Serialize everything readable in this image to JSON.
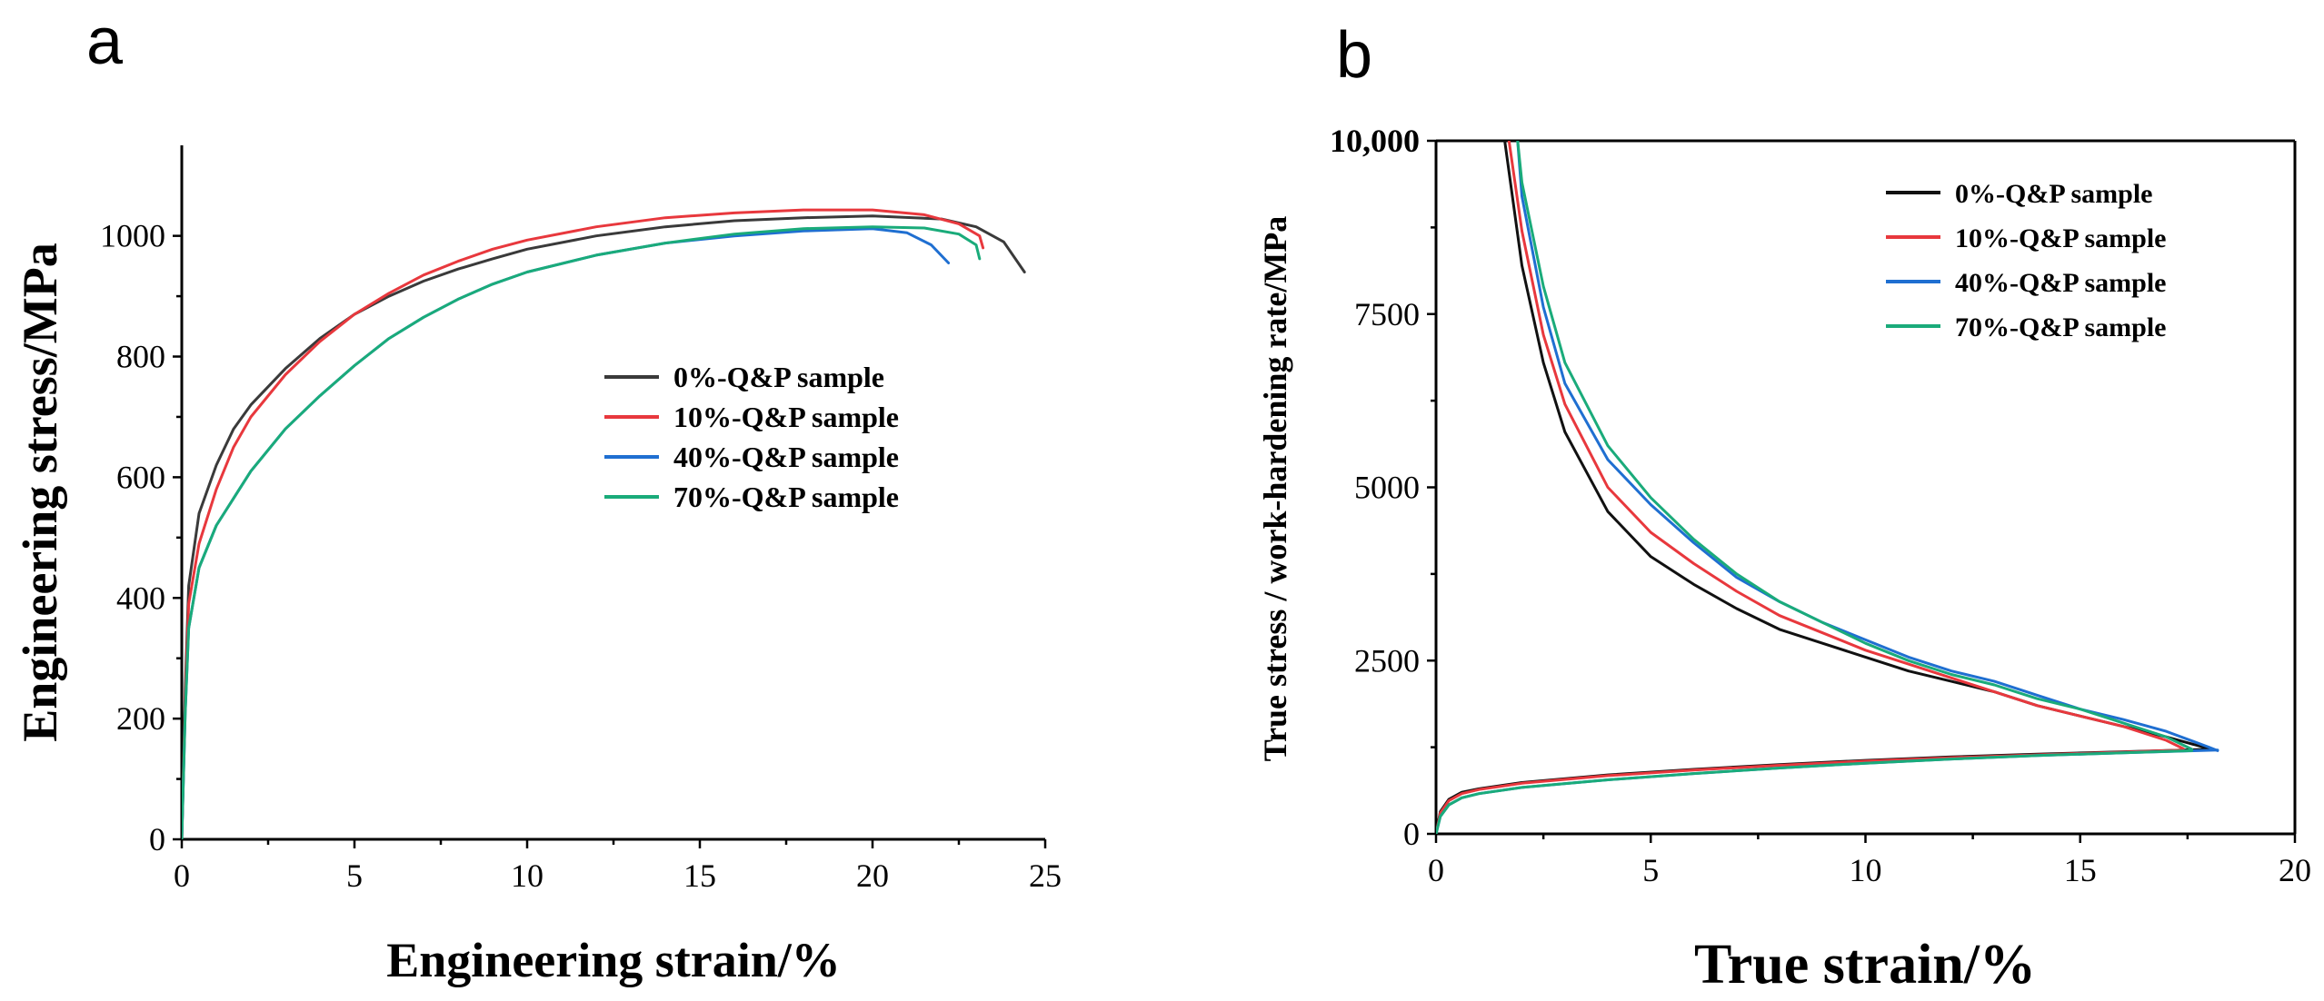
{
  "figure": {
    "panels": [
      "a",
      "b"
    ]
  },
  "chart_data": [
    {
      "id": "a",
      "type": "line",
      "title": "",
      "xlabel": "Engineering strain/%",
      "ylabel": "Engineering stress/MPa",
      "xlim": [
        0,
        25
      ],
      "ylim": [
        0,
        1150
      ],
      "xticks": [
        0,
        5,
        10,
        15,
        20,
        25
      ],
      "yticks": [
        0,
        200,
        400,
        600,
        800,
        1000
      ],
      "xtick_labels": [
        "0",
        "5",
        "10",
        "15",
        "20",
        "25"
      ],
      "ytick_labels": [
        "0",
        "200",
        "400",
        "600",
        "800",
        "1000"
      ],
      "legend_position": "center-right",
      "series": [
        {
          "name": "0%-Q&P sample",
          "color": "#3a3a3a",
          "points": [
            [
              0,
              0
            ],
            [
              0.1,
              250
            ],
            [
              0.2,
              420
            ],
            [
              0.5,
              540
            ],
            [
              1,
              620
            ],
            [
              1.5,
              680
            ],
            [
              2,
              720
            ],
            [
              3,
              780
            ],
            [
              4,
              830
            ],
            [
              5,
              870
            ],
            [
              6,
              900
            ],
            [
              7,
              925
            ],
            [
              8,
              945
            ],
            [
              9,
              962
            ],
            [
              10,
              978
            ],
            [
              12,
              1000
            ],
            [
              14,
              1015
            ],
            [
              16,
              1025
            ],
            [
              18,
              1030
            ],
            [
              20,
              1033
            ],
            [
              22,
              1028
            ],
            [
              23,
              1015
            ],
            [
              23.8,
              990
            ],
            [
              24.4,
              940
            ]
          ]
        },
        {
          "name": "10%-Q&P sample",
          "color": "#e8383d",
          "points": [
            [
              0,
              0
            ],
            [
              0.1,
              230
            ],
            [
              0.2,
              390
            ],
            [
              0.5,
              490
            ],
            [
              1,
              580
            ],
            [
              1.5,
              650
            ],
            [
              2,
              700
            ],
            [
              3,
              770
            ],
            [
              4,
              825
            ],
            [
              5,
              870
            ],
            [
              6,
              905
            ],
            [
              7,
              935
            ],
            [
              8,
              958
            ],
            [
              9,
              978
            ],
            [
              10,
              993
            ],
            [
              12,
              1015
            ],
            [
              14,
              1030
            ],
            [
              16,
              1038
            ],
            [
              18,
              1043
            ],
            [
              20,
              1043
            ],
            [
              21.5,
              1035
            ],
            [
              22.5,
              1020
            ],
            [
              23.1,
              1000
            ],
            [
              23.2,
              980
            ]
          ]
        },
        {
          "name": "40%-Q&P sample",
          "color": "#1f6fd1",
          "points": [
            [
              0,
              0
            ],
            [
              0.1,
              210
            ],
            [
              0.2,
              350
            ],
            [
              0.5,
              450
            ],
            [
              1,
              520
            ],
            [
              2,
              610
            ],
            [
              3,
              680
            ],
            [
              4,
              735
            ],
            [
              5,
              785
            ],
            [
              6,
              830
            ],
            [
              7,
              865
            ],
            [
              8,
              895
            ],
            [
              9,
              920
            ],
            [
              10,
              940
            ],
            [
              12,
              968
            ],
            [
              14,
              988
            ],
            [
              16,
              1000
            ],
            [
              18,
              1008
            ],
            [
              20,
              1012
            ],
            [
              21,
              1005
            ],
            [
              21.7,
              985
            ],
            [
              22.2,
              955
            ]
          ]
        },
        {
          "name": "70%-Q&P sample",
          "color": "#1aab7a",
          "points": [
            [
              0,
              0
            ],
            [
              0.1,
              210
            ],
            [
              0.2,
              350
            ],
            [
              0.5,
              450
            ],
            [
              1,
              520
            ],
            [
              2,
              610
            ],
            [
              3,
              680
            ],
            [
              4,
              735
            ],
            [
              5,
              785
            ],
            [
              6,
              830
            ],
            [
              7,
              865
            ],
            [
              8,
              895
            ],
            [
              9,
              920
            ],
            [
              10,
              940
            ],
            [
              12,
              968
            ],
            [
              14,
              988
            ],
            [
              16,
              1003
            ],
            [
              18,
              1012
            ],
            [
              20,
              1015
            ],
            [
              21.5,
              1013
            ],
            [
              22.5,
              1003
            ],
            [
              23,
              985
            ],
            [
              23.1,
              962
            ]
          ]
        }
      ]
    },
    {
      "id": "b",
      "type": "line",
      "title": "",
      "xlabel": "True strain/%",
      "ylabel": "True stress / work-hardening rate/MPa",
      "xlim": [
        0,
        20
      ],
      "ylim": [
        0,
        10000
      ],
      "xticks": [
        0,
        5,
        10,
        15,
        20
      ],
      "yticks": [
        0,
        2500,
        5000,
        7500,
        10000
      ],
      "xtick_labels": [
        "0",
        "5",
        "10",
        "15",
        "20"
      ],
      "ytick_labels": [
        "0",
        "2500",
        "5000",
        "7500",
        "10,000"
      ],
      "legend_position": "top-right",
      "series": [
        {
          "name": "0%-Q&P sample",
          "color": "#111111",
          "points": [
            [
              1.6,
              10000
            ],
            [
              2,
              8200
            ],
            [
              2.5,
              6800
            ],
            [
              3,
              5800
            ],
            [
              4,
              4650
            ],
            [
              5,
              4000
            ],
            [
              6,
              3600
            ],
            [
              7,
              3250
            ],
            [
              8,
              2950
            ],
            [
              9,
              2750
            ],
            [
              10,
              2550
            ],
            [
              11,
              2350
            ],
            [
              12,
              2200
            ],
            [
              13,
              2050
            ],
            [
              14,
              1850
            ],
            [
              15,
              1700
            ],
            [
              16,
              1550
            ],
            [
              17,
              1400
            ],
            [
              18,
              1230
            ]
          ],
          "stress_points": [
            [
              0,
              0
            ],
            [
              0.1,
              320
            ],
            [
              0.3,
              500
            ],
            [
              0.6,
              600
            ],
            [
              1,
              650
            ],
            [
              2,
              740
            ],
            [
              4,
              850
            ],
            [
              6,
              930
            ],
            [
              8,
              1000
            ],
            [
              10,
              1060
            ],
            [
              12,
              1110
            ],
            [
              14,
              1150
            ],
            [
              16,
              1185
            ],
            [
              18,
              1220
            ]
          ]
        },
        {
          "name": "10%-Q&P sample",
          "color": "#e8383d",
          "points": [
            [
              1.7,
              10000
            ],
            [
              2,
              8700
            ],
            [
              2.5,
              7200
            ],
            [
              3,
              6200
            ],
            [
              4,
              5000
            ],
            [
              5,
              4350
            ],
            [
              6,
              3900
            ],
            [
              7,
              3500
            ],
            [
              8,
              3150
            ],
            [
              9,
              2900
            ],
            [
              10,
              2650
            ],
            [
              11,
              2450
            ],
            [
              12,
              2250
            ],
            [
              13,
              2050
            ],
            [
              14,
              1850
            ],
            [
              15,
              1700
            ],
            [
              16,
              1550
            ],
            [
              17,
              1350
            ],
            [
              17.4,
              1230
            ]
          ],
          "stress_points": [
            [
              0,
              0
            ],
            [
              0.1,
              300
            ],
            [
              0.3,
              480
            ],
            [
              0.6,
              580
            ],
            [
              1,
              640
            ],
            [
              2,
              730
            ],
            [
              4,
              840
            ],
            [
              6,
              920
            ],
            [
              8,
              990
            ],
            [
              10,
              1050
            ],
            [
              12,
              1100
            ],
            [
              14,
              1140
            ],
            [
              16,
              1180
            ],
            [
              17.4,
              1210
            ]
          ]
        },
        {
          "name": "40%-Q&P sample",
          "color": "#1f6fd1",
          "points": [
            [
              1.9,
              10000
            ],
            [
              2,
              9200
            ],
            [
              2.5,
              7600
            ],
            [
              3,
              6500
            ],
            [
              4,
              5400
            ],
            [
              5,
              4750
            ],
            [
              6,
              4200
            ],
            [
              7,
              3700
            ],
            [
              8,
              3350
            ],
            [
              9,
              3050
            ],
            [
              10,
              2800
            ],
            [
              11,
              2550
            ],
            [
              12,
              2350
            ],
            [
              13,
              2200
            ],
            [
              14,
              2000
            ],
            [
              15,
              1800
            ],
            [
              16,
              1650
            ],
            [
              17,
              1480
            ],
            [
              18,
              1250
            ],
            [
              18.2,
              1200
            ]
          ],
          "stress_points": [
            [
              0,
              0
            ],
            [
              0.1,
              250
            ],
            [
              0.3,
              420
            ],
            [
              0.6,
              520
            ],
            [
              1,
              580
            ],
            [
              2,
              670
            ],
            [
              4,
              780
            ],
            [
              6,
              870
            ],
            [
              8,
              950
            ],
            [
              10,
              1020
            ],
            [
              12,
              1080
            ],
            [
              14,
              1130
            ],
            [
              16,
              1170
            ],
            [
              18.2,
              1210
            ]
          ]
        },
        {
          "name": "70%-Q&P sample",
          "color": "#1aab7a",
          "points": [
            [
              1.9,
              10000
            ],
            [
              2,
              9400
            ],
            [
              2.5,
              7900
            ],
            [
              3,
              6800
            ],
            [
              4,
              5600
            ],
            [
              5,
              4850
            ],
            [
              6,
              4250
            ],
            [
              7,
              3750
            ],
            [
              8,
              3350
            ],
            [
              9,
              3050
            ],
            [
              10,
              2750
            ],
            [
              11,
              2500
            ],
            [
              12,
              2300
            ],
            [
              13,
              2150
            ],
            [
              14,
              1950
            ],
            [
              15,
              1800
            ],
            [
              16,
              1600
            ],
            [
              17,
              1400
            ],
            [
              17.6,
              1220
            ]
          ],
          "stress_points": [
            [
              0,
              0
            ],
            [
              0.1,
              250
            ],
            [
              0.3,
              420
            ],
            [
              0.6,
              520
            ],
            [
              1,
              580
            ],
            [
              2,
              670
            ],
            [
              4,
              780
            ],
            [
              6,
              870
            ],
            [
              8,
              950
            ],
            [
              10,
              1020
            ],
            [
              12,
              1080
            ],
            [
              14,
              1130
            ],
            [
              16,
              1170
            ],
            [
              17.6,
              1200
            ]
          ]
        }
      ]
    }
  ]
}
